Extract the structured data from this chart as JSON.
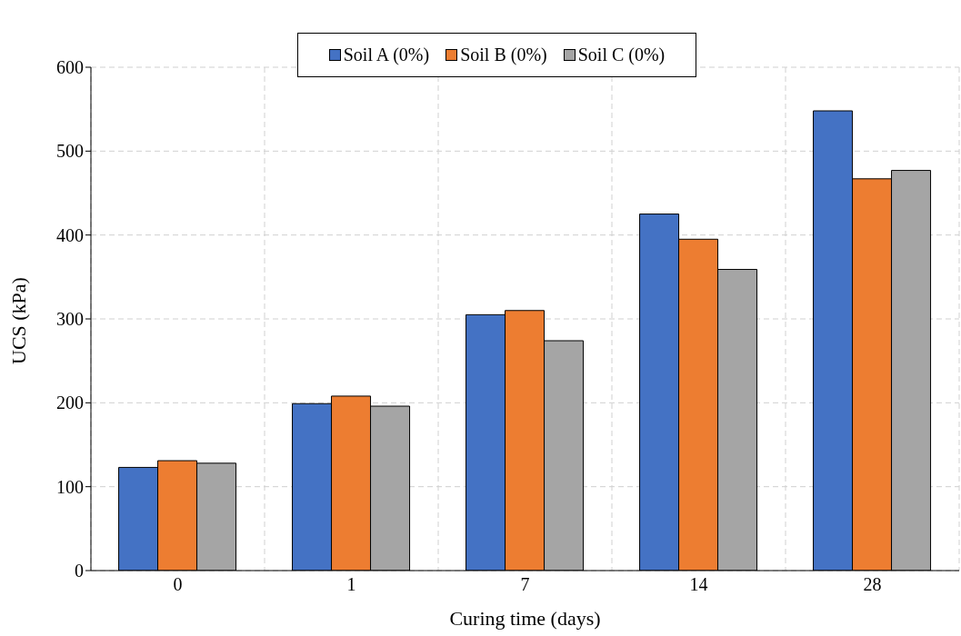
{
  "chart_data": {
    "type": "bar",
    "xlabel": "Curing time (days)",
    "ylabel": "UCS (kPa)",
    "categories": [
      "0",
      "1",
      "7",
      "14",
      "28"
    ],
    "series": [
      {
        "name": "Soil A (0%)",
        "color": "#4472c4",
        "values": [
          123,
          199,
          305,
          425,
          548
        ]
      },
      {
        "name": "Soil B (0%)",
        "color": "#ed7d31",
        "values": [
          131,
          208,
          310,
          395,
          467
        ]
      },
      {
        "name": "Soil C (0%)",
        "color": "#a5a5a5",
        "values": [
          128,
          196,
          274,
          359,
          477
        ]
      }
    ],
    "ylim": [
      0,
      600
    ],
    "yticks": [
      0,
      100,
      200,
      300,
      400,
      500,
      600
    ],
    "grid": true,
    "legend": "top"
  }
}
